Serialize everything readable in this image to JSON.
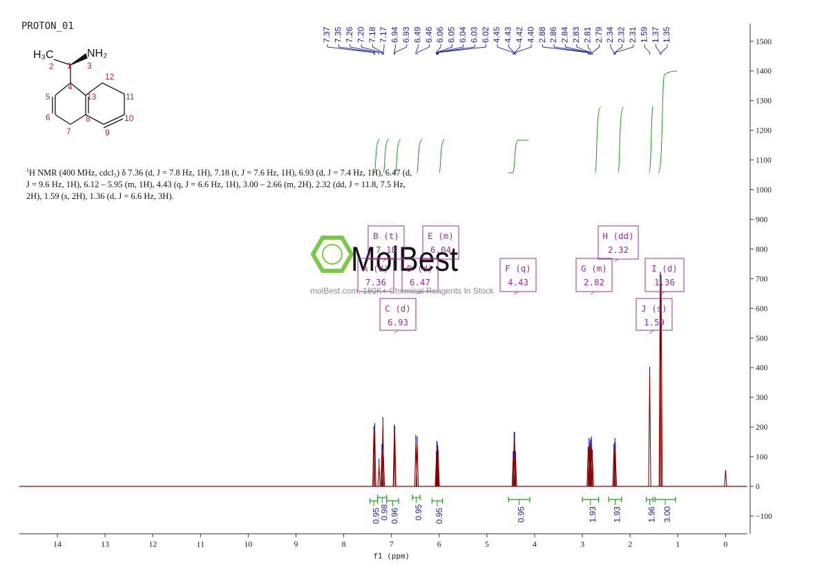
{
  "title": "PROTON_01",
  "description": {
    "sup": "1",
    "text": "H NMR (400 MHz, cdcl₃) δ 7.36 (d, J = 7.8 Hz, 1H), 7.18 (t, J = 7.6 Hz, 1H), 6.93 (d, J = 7.4 Hz, 1H), 6.47 (d, J = 9.6 Hz, 1H), 6.12 – 5.95 (m, 1H), 4.43 (q, J = 6.6 Hz, 1H), 3.00 – 2.66 (m, 2H), 2.32 (dd, J = 11.8, 7.5 Hz, 2H), 1.59 (s, 2H), 1.36 (d, J = 6.6 Hz, 3H)."
  },
  "watermark": {
    "brand": "MolBest",
    "tagline": "molBest.com, 180K+ Chemical Reagents In Stock"
  },
  "structure": {
    "groups": {
      "ch3": "H₃C",
      "nh2": "NH₂"
    },
    "atom_numbers": [
      "1",
      "2",
      "3",
      "4",
      "5",
      "6",
      "7",
      "8",
      "9",
      "10",
      "11",
      "12",
      "13"
    ]
  },
  "colors": {
    "spectrum": "#8b0000",
    "peak_labels": "#1c1c9c",
    "integral": "#1a9a1a",
    "multiplet_box": "#9c2c9c",
    "atom_numbers": "#cc2020",
    "watermark_green": "#7ac943"
  },
  "chart_data": {
    "type": "line",
    "xlabel": "f1 (ppm)",
    "ylabel": "",
    "xlim": [
      14.8,
      -0.45
    ],
    "ylim": [
      -160,
      1560
    ],
    "x_ticks": [
      14,
      13,
      12,
      11,
      10,
      9,
      8,
      7,
      6,
      5,
      4,
      3,
      2,
      1,
      0
    ],
    "y_ticks": [
      -100,
      0,
      100,
      200,
      300,
      400,
      500,
      600,
      700,
      800,
      900,
      1000,
      1100,
      1200,
      1300,
      1400,
      1500
    ],
    "peak_labels": [
      "7.37",
      "7.35",
      "7.26",
      "7.20",
      "7.18",
      "7.17",
      "6.94",
      "6.93",
      "6.49",
      "6.46",
      "6.06",
      "6.05",
      "6.04",
      "6.03",
      "6.02",
      "4.45",
      "4.43",
      "4.42",
      "4.40",
      "2.88",
      "2.86",
      "2.84",
      "2.83",
      "2.81",
      "2.79",
      "2.34",
      "2.32",
      "2.31",
      "1.59",
      "1.37",
      "1.35"
    ],
    "peaks": [
      {
        "x": 7.37,
        "y": 180
      },
      {
        "x": 7.35,
        "y": 190
      },
      {
        "x": 7.26,
        "y": 70
      },
      {
        "x": 7.2,
        "y": 120
      },
      {
        "x": 7.18,
        "y": 210
      },
      {
        "x": 7.17,
        "y": 115
      },
      {
        "x": 6.94,
        "y": 185
      },
      {
        "x": 6.93,
        "y": 180
      },
      {
        "x": 6.49,
        "y": 150
      },
      {
        "x": 6.46,
        "y": 145
      },
      {
        "x": 6.06,
        "y": 95
      },
      {
        "x": 6.05,
        "y": 130
      },
      {
        "x": 6.04,
        "y": 125
      },
      {
        "x": 6.03,
        "y": 115
      },
      {
        "x": 6.02,
        "y": 100
      },
      {
        "x": 4.45,
        "y": 95
      },
      {
        "x": 4.43,
        "y": 160
      },
      {
        "x": 4.42,
        "y": 160
      },
      {
        "x": 4.4,
        "y": 95
      },
      {
        "x": 2.88,
        "y": 110
      },
      {
        "x": 2.86,
        "y": 140
      },
      {
        "x": 2.84,
        "y": 125
      },
      {
        "x": 2.83,
        "y": 135
      },
      {
        "x": 2.81,
        "y": 145
      },
      {
        "x": 2.79,
        "y": 100
      },
      {
        "x": 2.34,
        "y": 120
      },
      {
        "x": 2.32,
        "y": 140
      },
      {
        "x": 2.31,
        "y": 125
      },
      {
        "x": 1.59,
        "y": 380
      },
      {
        "x": 1.37,
        "y": 700
      },
      {
        "x": 1.35,
        "y": 690
      },
      {
        "x": 0.0,
        "y": 55
      }
    ],
    "multiplets": [
      {
        "label": "A (d)",
        "value": "7.36"
      },
      {
        "label": "B (t)",
        "value": "7.18"
      },
      {
        "label": "C (d)",
        "value": "6.93"
      },
      {
        "label": "D (d)",
        "value": "6.47"
      },
      {
        "label": "E (m)",
        "value": "6.04"
      },
      {
        "label": "F (q)",
        "value": "4.43"
      },
      {
        "label": "G (m)",
        "value": "2.82"
      },
      {
        "label": "H (dd)",
        "value": "2.32"
      },
      {
        "label": "I (d)",
        "value": "1.36"
      },
      {
        "label": "J (s)",
        "value": "1.59"
      }
    ],
    "integrals": [
      {
        "from": 7.45,
        "to": 7.29,
        "value": "0.95"
      },
      {
        "from": 7.29,
        "to": 7.1,
        "value": "0.98"
      },
      {
        "from": 7.1,
        "to": 6.85,
        "value": "0.96"
      },
      {
        "from": 6.56,
        "to": 6.4,
        "value": "0.95"
      },
      {
        "from": 6.15,
        "to": 5.93,
        "value": "0.95"
      },
      {
        "from": 4.55,
        "to": 4.1,
        "value": "0.95"
      },
      {
        "from": 3.0,
        "to": 2.66,
        "value": "1.93"
      },
      {
        "from": 2.45,
        "to": 2.18,
        "value": "1.93"
      },
      {
        "from": 1.66,
        "to": 1.52,
        "value": "1.96"
      },
      {
        "from": 1.48,
        "to": 1.05,
        "value": "3.00"
      }
    ]
  }
}
